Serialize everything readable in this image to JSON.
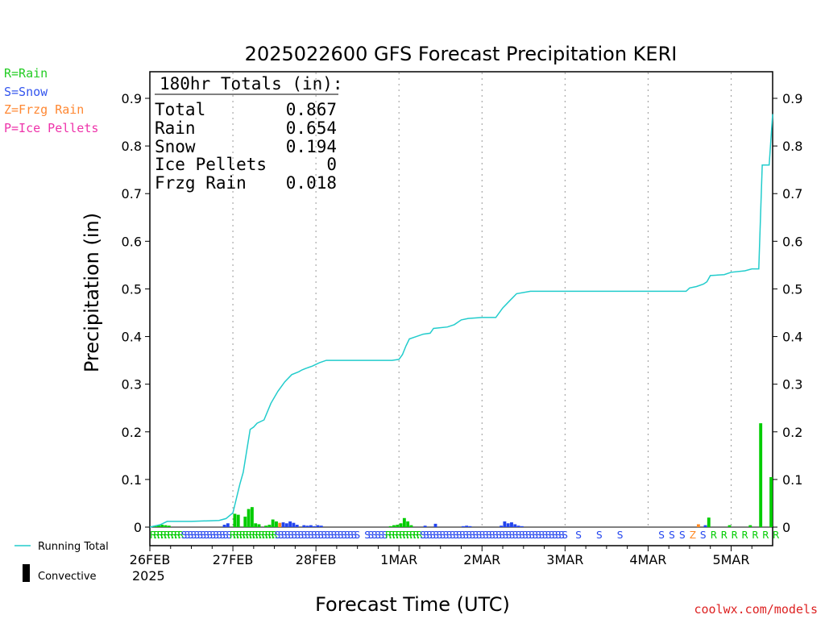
{
  "chart_data": {
    "type": "bar",
    "title": "2025022600 GFS Forecast Precipitation KERI",
    "ylabel": "Precipitation (in)",
    "xlabel": "Forecast Time (UTC)",
    "ylim": [
      0,
      0.95
    ],
    "yticks": [
      "0",
      "0.1",
      "0.2",
      "0.3",
      "0.4",
      "0.5",
      "0.6",
      "0.7",
      "0.8",
      "0.9"
    ],
    "ytick_values": [
      0,
      0.1,
      0.2,
      0.3,
      0.4,
      0.5,
      0.6,
      0.7,
      0.8,
      0.9
    ],
    "xlim_hours": [
      0,
      180
    ],
    "xticks": [
      {
        "label": "26FEB",
        "hour": 0
      },
      {
        "label": "27FEB",
        "hour": 24
      },
      {
        "label": "28FEB",
        "hour": 48
      },
      {
        "label": "1MAR",
        "hour": 72
      },
      {
        "label": "2MAR",
        "hour": 96
      },
      {
        "label": "3MAR",
        "hour": 120
      },
      {
        "label": "4MAR",
        "hour": 144
      },
      {
        "label": "5MAR",
        "hour": 168
      }
    ],
    "year_label": "2025",
    "grid": "vertical dotted at day boundaries",
    "totals_box": {
      "header": "180hr Totals (in):",
      "rows": [
        {
          "label": "Total",
          "value": "0.867"
        },
        {
          "label": "Rain",
          "value": "0.654"
        },
        {
          "label": "Snow",
          "value": "0.194"
        },
        {
          "label": "Ice Pellets",
          "value": "0"
        },
        {
          "label": "Frzg Rain",
          "value": "0.018"
        }
      ]
    },
    "type_legend": [
      {
        "label": "R=Rain",
        "color": "#22cc22"
      },
      {
        "label": "S=Snow",
        "color": "#3355ee"
      },
      {
        "label": "Z=Frzg Rain",
        "color": "#ff8833"
      },
      {
        "label": "P=Ice Pellets",
        "color": "#ee33aa"
      }
    ],
    "series_legend": [
      {
        "label": "Running Total",
        "color": "#22cccc",
        "kind": "line"
      },
      {
        "label": "Convective",
        "color": "#000000",
        "kind": "bar"
      }
    ],
    "colors": {
      "rain": "#00cc00",
      "snow": "#2244ee",
      "frzg": "#ff8822",
      "total": "#22cccc",
      "convective": "#000000"
    },
    "bars": [
      {
        "hour": 1,
        "value": 0.002,
        "type": "rain"
      },
      {
        "hour": 2,
        "value": 0.003,
        "type": "rain"
      },
      {
        "hour": 3,
        "value": 0.004,
        "type": "rain"
      },
      {
        "hour": 4,
        "value": 0.005,
        "type": "rain"
      },
      {
        "hour": 5,
        "value": 0.004,
        "type": "rain"
      },
      {
        "hour": 6,
        "value": 0.003,
        "type": "rain"
      },
      {
        "hour": 22,
        "value": 0.005,
        "type": "snow"
      },
      {
        "hour": 23,
        "value": 0.008,
        "type": "snow"
      },
      {
        "hour": 25,
        "value": 0.028,
        "type": "rain"
      },
      {
        "hour": 26,
        "value": 0.026,
        "type": "rain"
      },
      {
        "hour": 28,
        "value": 0.022,
        "type": "rain"
      },
      {
        "hour": 29,
        "value": 0.038,
        "type": "rain"
      },
      {
        "hour": 30,
        "value": 0.042,
        "type": "rain"
      },
      {
        "hour": 31,
        "value": 0.008,
        "type": "rain"
      },
      {
        "hour": 32,
        "value": 0.006,
        "type": "rain"
      },
      {
        "hour": 34,
        "value": 0.003,
        "type": "rain"
      },
      {
        "hour": 35,
        "value": 0.005,
        "type": "rain"
      },
      {
        "hour": 36,
        "value": 0.016,
        "type": "rain"
      },
      {
        "hour": 37,
        "value": 0.012,
        "type": "rain"
      },
      {
        "hour": 38,
        "value": 0.009,
        "type": "frzg"
      },
      {
        "hour": 39,
        "value": 0.01,
        "type": "snow"
      },
      {
        "hour": 40,
        "value": 0.008,
        "type": "snow"
      },
      {
        "hour": 41,
        "value": 0.012,
        "type": "snow"
      },
      {
        "hour": 42,
        "value": 0.009,
        "type": "snow"
      },
      {
        "hour": 43,
        "value": 0.005,
        "type": "snow"
      },
      {
        "hour": 45,
        "value": 0.004,
        "type": "snow"
      },
      {
        "hour": 46,
        "value": 0.003,
        "type": "snow"
      },
      {
        "hour": 47,
        "value": 0.004,
        "type": "snow"
      },
      {
        "hour": 48,
        "value": 0.002,
        "type": "snow"
      },
      {
        "hour": 49,
        "value": 0.004,
        "type": "snow"
      },
      {
        "hour": 50,
        "value": 0.003,
        "type": "snow"
      },
      {
        "hour": 70,
        "value": 0.002,
        "type": "rain"
      },
      {
        "hour": 71,
        "value": 0.004,
        "type": "rain"
      },
      {
        "hour": 72,
        "value": 0.005,
        "type": "rain"
      },
      {
        "hour": 73,
        "value": 0.008,
        "type": "rain"
      },
      {
        "hour": 74,
        "value": 0.019,
        "type": "rain"
      },
      {
        "hour": 75,
        "value": 0.012,
        "type": "rain"
      },
      {
        "hour": 76,
        "value": 0.004,
        "type": "rain"
      },
      {
        "hour": 80,
        "value": 0.003,
        "type": "snow"
      },
      {
        "hour": 83,
        "value": 0.007,
        "type": "snow"
      },
      {
        "hour": 91,
        "value": 0.002,
        "type": "snow"
      },
      {
        "hour": 92,
        "value": 0.003,
        "type": "snow"
      },
      {
        "hour": 93,
        "value": 0.002,
        "type": "snow"
      },
      {
        "hour": 102,
        "value": 0.003,
        "type": "snow"
      },
      {
        "hour": 103,
        "value": 0.012,
        "type": "snow"
      },
      {
        "hour": 104,
        "value": 0.008,
        "type": "snow"
      },
      {
        "hour": 105,
        "value": 0.01,
        "type": "snow"
      },
      {
        "hour": 106,
        "value": 0.006,
        "type": "snow"
      },
      {
        "hour": 107,
        "value": 0.003,
        "type": "snow"
      },
      {
        "hour": 108,
        "value": 0.002,
        "type": "snow"
      },
      {
        "hour": 159,
        "value": 0.006,
        "type": "frzg"
      },
      {
        "hour": 161,
        "value": 0.004,
        "type": "snow"
      },
      {
        "hour": 162,
        "value": 0.02,
        "type": "rain"
      },
      {
        "hour": 168,
        "value": 0.004,
        "type": "rain"
      },
      {
        "hour": 174,
        "value": 0.004,
        "type": "rain"
      },
      {
        "hour": 177,
        "value": 0.218,
        "type": "rain"
      },
      {
        "hour": 180,
        "value": 0.105,
        "type": "rain"
      }
    ],
    "running_total": [
      {
        "hour": 0,
        "value": 0
      },
      {
        "hour": 3,
        "value": 0.005
      },
      {
        "hour": 5,
        "value": 0.012
      },
      {
        "hour": 12,
        "value": 0.012
      },
      {
        "hour": 20,
        "value": 0.014
      },
      {
        "hour": 22,
        "value": 0.018
      },
      {
        "hour": 24,
        "value": 0.03
      },
      {
        "hour": 25,
        "value": 0.06
      },
      {
        "hour": 26,
        "value": 0.09
      },
      {
        "hour": 27,
        "value": 0.115
      },
      {
        "hour": 28,
        "value": 0.16
      },
      {
        "hour": 29,
        "value": 0.205
      },
      {
        "hour": 30,
        "value": 0.21
      },
      {
        "hour": 31,
        "value": 0.218
      },
      {
        "hour": 33,
        "value": 0.225
      },
      {
        "hour": 35,
        "value": 0.26
      },
      {
        "hour": 37,
        "value": 0.285
      },
      {
        "hour": 39,
        "value": 0.305
      },
      {
        "hour": 41,
        "value": 0.32
      },
      {
        "hour": 43,
        "value": 0.326
      },
      {
        "hour": 44,
        "value": 0.33
      },
      {
        "hour": 45,
        "value": 0.333
      },
      {
        "hour": 47,
        "value": 0.338
      },
      {
        "hour": 49,
        "value": 0.345
      },
      {
        "hour": 51,
        "value": 0.35
      },
      {
        "hour": 60,
        "value": 0.35
      },
      {
        "hour": 70,
        "value": 0.35
      },
      {
        "hour": 72,
        "value": 0.352
      },
      {
        "hour": 73,
        "value": 0.362
      },
      {
        "hour": 74,
        "value": 0.38
      },
      {
        "hour": 75,
        "value": 0.395
      },
      {
        "hour": 77,
        "value": 0.4
      },
      {
        "hour": 79,
        "value": 0.405
      },
      {
        "hour": 81,
        "value": 0.407
      },
      {
        "hour": 82,
        "value": 0.417
      },
      {
        "hour": 86,
        "value": 0.42
      },
      {
        "hour": 88,
        "value": 0.425
      },
      {
        "hour": 90,
        "value": 0.435
      },
      {
        "hour": 92,
        "value": 0.438
      },
      {
        "hour": 96,
        "value": 0.44
      },
      {
        "hour": 100,
        "value": 0.44
      },
      {
        "hour": 102,
        "value": 0.46
      },
      {
        "hour": 104,
        "value": 0.475
      },
      {
        "hour": 106,
        "value": 0.49
      },
      {
        "hour": 110,
        "value": 0.495
      },
      {
        "hour": 120,
        "value": 0.495
      },
      {
        "hour": 140,
        "value": 0.495
      },
      {
        "hour": 155,
        "value": 0.495
      },
      {
        "hour": 156,
        "value": 0.502
      },
      {
        "hour": 158,
        "value": 0.505
      },
      {
        "hour": 160,
        "value": 0.51
      },
      {
        "hour": 161,
        "value": 0.515
      },
      {
        "hour": 162,
        "value": 0.528
      },
      {
        "hour": 166,
        "value": 0.53
      },
      {
        "hour": 168,
        "value": 0.535
      },
      {
        "hour": 172,
        "value": 0.538
      },
      {
        "hour": 174,
        "value": 0.542
      },
      {
        "hour": 176,
        "value": 0.542
      },
      {
        "hour": 177,
        "value": 0.76
      },
      {
        "hour": 179,
        "value": 0.76
      },
      {
        "hour": 180,
        "value": 0.867
      }
    ],
    "type_codes": [
      {
        "from_hour": 0,
        "to_hour": 9,
        "code": "R",
        "type": "rain"
      },
      {
        "from_hour": 9,
        "to_hour": 21,
        "code": "S",
        "type": "snow"
      },
      {
        "from_hour": 21,
        "to_hour": 23,
        "code": "S",
        "type": "snow"
      },
      {
        "from_hour": 23,
        "to_hour": 36,
        "code": "R",
        "type": "rain"
      },
      {
        "from_hour": 36,
        "to_hour": 60,
        "code": "S",
        "type": "snow"
      },
      {
        "from_hour": 62,
        "to_hour": 66,
        "code": "S",
        "type": "snow"
      },
      {
        "from_hour": 66,
        "to_hour": 68,
        "code": "S",
        "type": "snow"
      },
      {
        "from_hour": 68,
        "to_hour": 70,
        "code": "R",
        "type": "rain"
      },
      {
        "from_hour": 70,
        "to_hour": 78,
        "code": "R",
        "type": "rain"
      },
      {
        "from_hour": 78,
        "to_hour": 120,
        "code": "S",
        "type": "snow"
      },
      {
        "from_hour": 123,
        "to_hour": 124,
        "code": "S",
        "type": "snow"
      },
      {
        "from_hour": 129,
        "to_hour": 130,
        "code": "S",
        "type": "snow"
      },
      {
        "from_hour": 135,
        "to_hour": 136,
        "code": "S",
        "type": "snow"
      },
      {
        "from_hour": 147,
        "to_hour": 148,
        "code": "S",
        "type": "snow"
      },
      {
        "from_hour": 150,
        "to_hour": 151,
        "code": "S",
        "type": "snow"
      },
      {
        "from_hour": 153,
        "to_hour": 154,
        "code": "S",
        "type": "snow"
      },
      {
        "from_hour": 156,
        "to_hour": 157,
        "code": "Z",
        "type": "frzg"
      },
      {
        "from_hour": 159,
        "to_hour": 160,
        "code": "S",
        "type": "snow"
      },
      {
        "from_hour": 162,
        "to_hour": 163,
        "code": "R",
        "type": "rain"
      },
      {
        "from_hour": 165,
        "to_hour": 166,
        "code": "R",
        "type": "rain"
      },
      {
        "from_hour": 168,
        "to_hour": 169,
        "code": "R",
        "type": "rain"
      },
      {
        "from_hour": 171,
        "to_hour": 172,
        "code": "R",
        "type": "rain"
      },
      {
        "from_hour": 174,
        "to_hour": 175,
        "code": "R",
        "type": "rain"
      },
      {
        "from_hour": 177,
        "to_hour": 178,
        "code": "R",
        "type": "rain"
      },
      {
        "from_hour": 180,
        "to_hour": 181,
        "code": "R",
        "type": "rain"
      }
    ]
  },
  "footer": {
    "credit": "coolwx.com/models"
  }
}
